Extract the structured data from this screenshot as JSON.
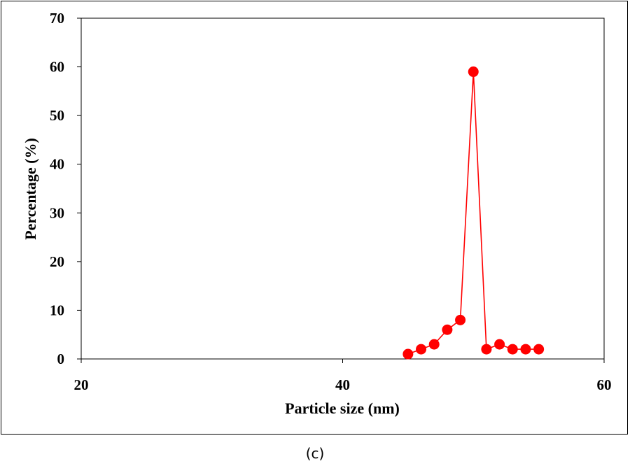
{
  "caption": "(c)",
  "chart_data": {
    "type": "line",
    "xlabel": "Particle size (nm)",
    "ylabel": "Percentage (%)",
    "xlim": [
      20,
      60
    ],
    "ylim": [
      0,
      70
    ],
    "x_ticks": [
      20,
      40,
      60
    ],
    "y_ticks": [
      0,
      10,
      20,
      30,
      40,
      50,
      60,
      70
    ],
    "grid": false,
    "legend": "none",
    "series": [
      {
        "color": "#ff0000",
        "marker": "circle",
        "x": [
          45,
          46,
          47,
          48,
          49,
          50,
          51,
          52,
          53,
          54,
          55
        ],
        "y": [
          1,
          2,
          3,
          6,
          8,
          59,
          2,
          3,
          2,
          2,
          2
        ]
      }
    ]
  }
}
